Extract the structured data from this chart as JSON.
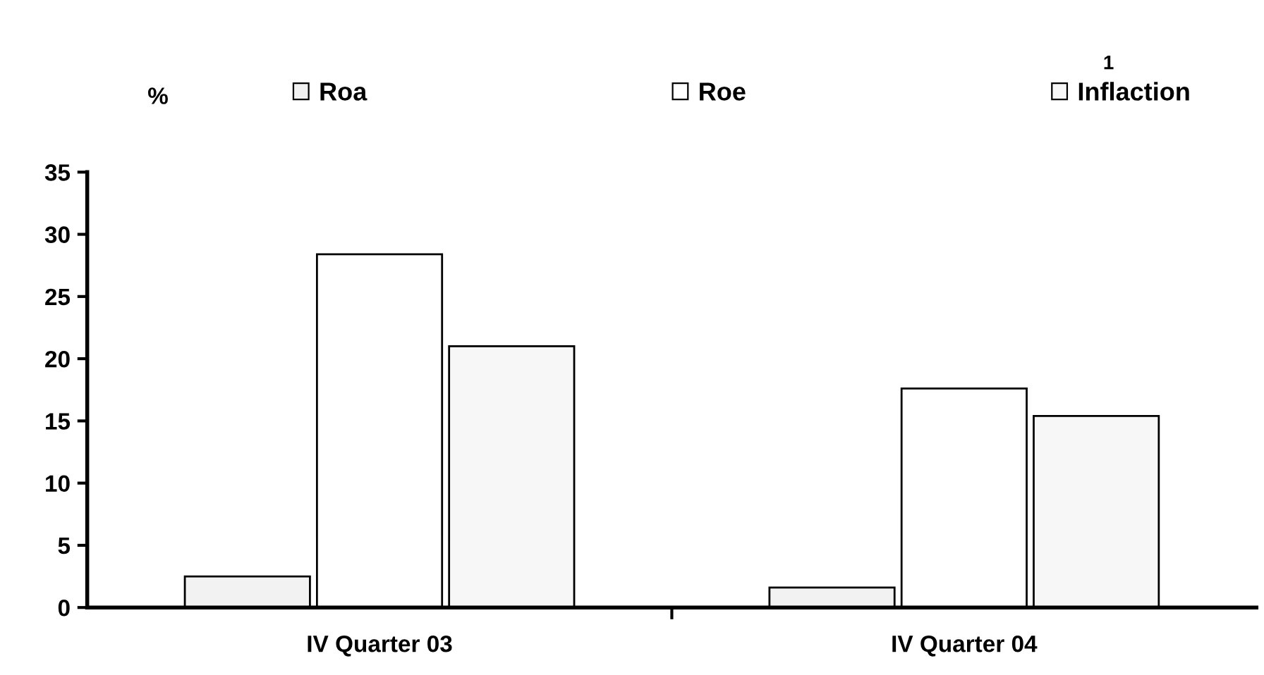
{
  "chart_data": {
    "type": "bar",
    "categories": [
      "IV Quarter 03",
      "IV Quarter 04"
    ],
    "series": [
      {
        "name": "Roa",
        "color": "#f2f2f2",
        "values": [
          2.5,
          1.6
        ]
      },
      {
        "name": "Roe",
        "color": "#ffffff",
        "values": [
          28.4,
          17.6
        ]
      },
      {
        "name": "Inflaction",
        "color": "#f7f7f7",
        "values": [
          21.0,
          15.4
        ]
      }
    ],
    "ylim": [
      0,
      35
    ],
    "yticks": [
      0,
      5,
      10,
      15,
      20,
      25,
      30,
      35
    ],
    "grid": false,
    "legend": "top",
    "annotations": [
      "%",
      "1"
    ]
  }
}
